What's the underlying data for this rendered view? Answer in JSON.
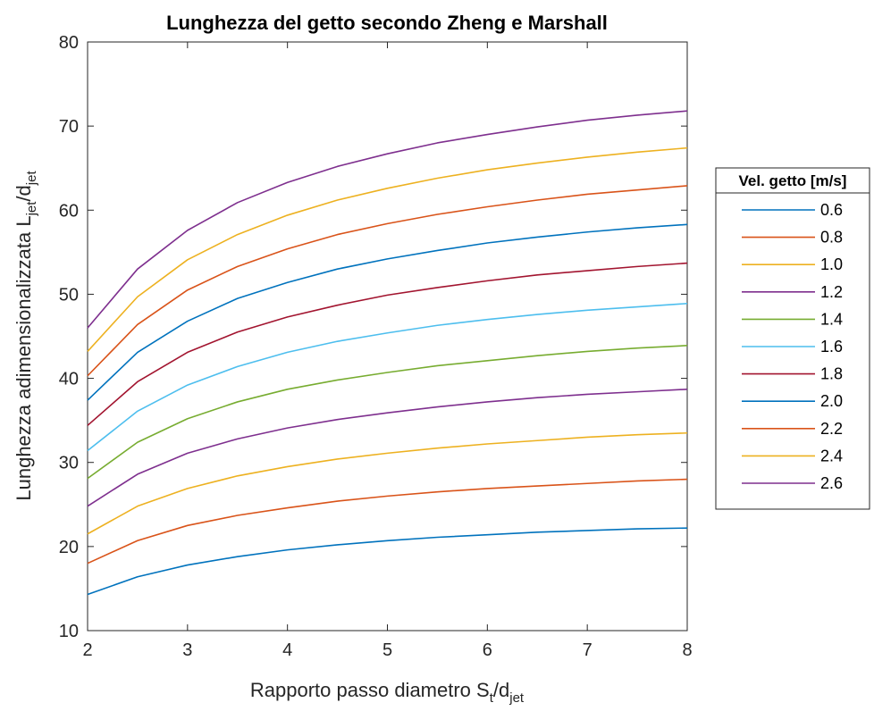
{
  "chart_data": {
    "type": "line",
    "title": "Lunghezza del getto secondo Zheng e Marshall",
    "xlabel": {
      "main": "Rapporto passo diametro S",
      "sub1": "t",
      "mid": "/d",
      "sub2": "jet"
    },
    "ylabel": {
      "main": "Lunghezza adimensionalizzata L",
      "sub1": "jet",
      "mid": "/d",
      "sub2": "jet"
    },
    "xlim": [
      2,
      8
    ],
    "ylim": [
      10,
      80
    ],
    "x_ticks": [
      "2",
      "3",
      "4",
      "5",
      "6",
      "7",
      "8"
    ],
    "y_ticks": [
      "10",
      "20",
      "30",
      "40",
      "50",
      "60",
      "70",
      "80"
    ],
    "grid": false,
    "legend": {
      "title": "Vel. getto [m/s]",
      "placement": "right-outside"
    },
    "x": [
      2,
      2.5,
      3,
      3.5,
      4,
      4.5,
      5,
      5.5,
      6,
      6.5,
      7,
      7.5,
      8
    ],
    "series": [
      {
        "name": "0.6",
        "color": "#0072BD",
        "values": [
          14.3,
          16.4,
          17.8,
          18.8,
          19.6,
          20.2,
          20.7,
          21.1,
          21.4,
          21.7,
          21.9,
          22.1,
          22.2
        ]
      },
      {
        "name": "0.8",
        "color": "#D95319",
        "values": [
          18.0,
          20.7,
          22.5,
          23.7,
          24.6,
          25.4,
          26.0,
          26.5,
          26.9,
          27.2,
          27.5,
          27.8,
          28.0
        ]
      },
      {
        "name": "1.0",
        "color": "#EDB120",
        "values": [
          21.5,
          24.8,
          26.9,
          28.4,
          29.5,
          30.4,
          31.1,
          31.7,
          32.2,
          32.6,
          33.0,
          33.3,
          33.5
        ]
      },
      {
        "name": "1.2",
        "color": "#7E2F8E",
        "values": [
          24.8,
          28.6,
          31.1,
          32.8,
          34.1,
          35.1,
          35.9,
          36.6,
          37.2,
          37.7,
          38.1,
          38.4,
          38.7
        ]
      },
      {
        "name": "1.4",
        "color": "#77AC30",
        "values": [
          28.1,
          32.4,
          35.2,
          37.2,
          38.7,
          39.8,
          40.7,
          41.5,
          42.1,
          42.7,
          43.2,
          43.6,
          43.9
        ]
      },
      {
        "name": "1.6",
        "color": "#4DBEEE",
        "values": [
          31.4,
          36.1,
          39.2,
          41.4,
          43.1,
          44.4,
          45.4,
          46.3,
          47.0,
          47.6,
          48.1,
          48.5,
          48.9
        ]
      },
      {
        "name": "1.8",
        "color": "#A2142F",
        "values": [
          34.4,
          39.6,
          43.1,
          45.5,
          47.3,
          48.7,
          49.9,
          50.8,
          51.6,
          52.3,
          52.8,
          53.3,
          53.7
        ]
      },
      {
        "name": "2.0",
        "color": "#0072BD",
        "values": [
          37.4,
          43.1,
          46.8,
          49.5,
          51.4,
          53.0,
          54.2,
          55.2,
          56.1,
          56.8,
          57.4,
          57.9,
          58.3
        ]
      },
      {
        "name": "2.2",
        "color": "#D95319",
        "values": [
          40.3,
          46.4,
          50.5,
          53.3,
          55.4,
          57.1,
          58.4,
          59.5,
          60.4,
          61.2,
          61.9,
          62.4,
          62.9
        ]
      },
      {
        "name": "2.4",
        "color": "#EDB120",
        "values": [
          43.2,
          49.7,
          54.1,
          57.1,
          59.4,
          61.2,
          62.6,
          63.8,
          64.8,
          65.6,
          66.3,
          66.9,
          67.4
        ]
      },
      {
        "name": "2.6",
        "color": "#7E2F8E",
        "values": [
          46.0,
          53.0,
          57.6,
          60.9,
          63.3,
          65.2,
          66.7,
          68.0,
          69.0,
          69.9,
          70.7,
          71.3,
          71.8
        ]
      }
    ]
  }
}
